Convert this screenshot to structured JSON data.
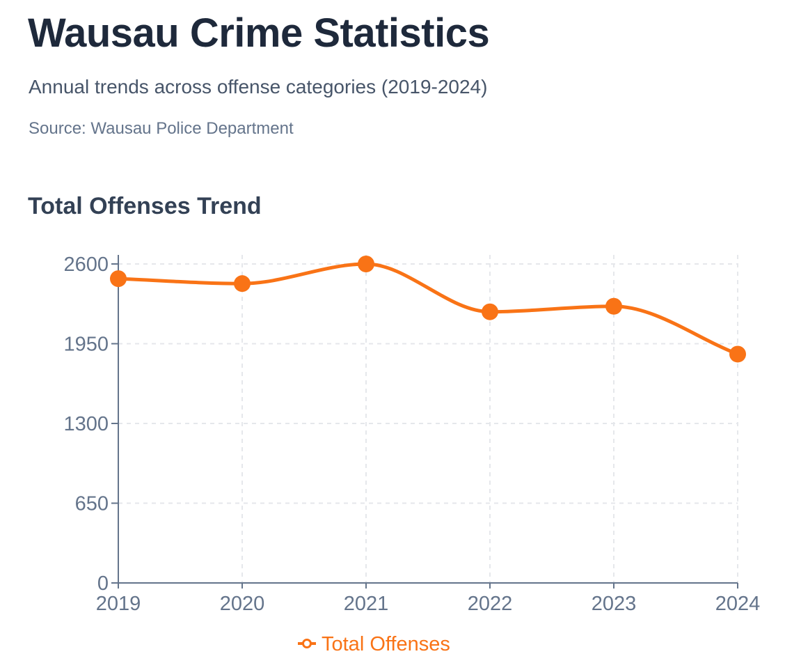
{
  "header": {
    "title": "Wausau Crime Statistics",
    "subtitle": "Annual trends across offense categories (2019-2024)",
    "source": "Source: Wausau Police Department"
  },
  "colors": {
    "series": "#f97316",
    "axis": "#64748b",
    "grid": "#e5e7eb"
  },
  "chart_data": {
    "type": "line",
    "title": "Total Offenses Trend",
    "xlabel": "",
    "ylabel": "",
    "categories": [
      "2019",
      "2020",
      "2021",
      "2022",
      "2023",
      "2024"
    ],
    "series": [
      {
        "name": "Total Offenses",
        "values": [
          2480,
          2440,
          2600,
          2210,
          2255,
          1865
        ]
      }
    ],
    "ylim": [
      0,
      2600
    ],
    "yticks": [
      0,
      650,
      1300,
      1950,
      2600
    ],
    "grid": true,
    "curve": "smooth",
    "legend": "bottom-center"
  }
}
